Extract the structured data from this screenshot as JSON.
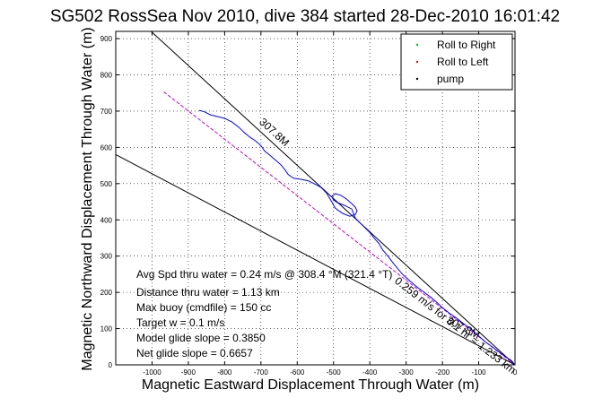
{
  "chart_data": {
    "type": "line",
    "title": "SG502 RossSea Nov 2010, dive 384 started 28-Dec-2010 16:01:42",
    "xlabel": "Magnetic Eastward Displacement Through Water (m)",
    "ylabel": "Magnetic Northward Displacement Through Water (m)",
    "xlim": [
      -1100,
      0
    ],
    "ylim": [
      0,
      920
    ],
    "grid": true,
    "xticks": [
      -1000,
      -900,
      -800,
      -700,
      -600,
      -500,
      -400,
      -300,
      -200,
      -100,
      0
    ],
    "yticks": [
      0,
      100,
      200,
      300,
      400,
      500,
      600,
      700,
      800,
      900
    ],
    "legend": {
      "placement": "top-right",
      "entries": [
        {
          "label": "Roll to Right",
          "color": "#00c000",
          "marker": "."
        },
        {
          "label": "Roll to Left",
          "color": "#ff0000",
          "marker": "."
        },
        {
          "label": "pump",
          "color": "#000000",
          "marker": "."
        }
      ]
    },
    "reference_lines": [
      {
        "label": "307.8M",
        "color": "#000000",
        "x": [
          0,
          -1030
        ],
        "y": [
          0,
          945
        ]
      },
      {
        "label": "0.259 m/s for 0.1 hr = 1.233 km",
        "color": "#cc00cc",
        "x": [
          0,
          -970
        ],
        "y": [
          0,
          755
        ]
      },
      {
        "label": "307.8M",
        "color": "#000000",
        "x": [
          0,
          -1100
        ],
        "y": [
          0,
          580
        ]
      }
    ],
    "series": [
      {
        "color": "#0000ff",
        "x": [
          0,
          -10,
          -30,
          -50,
          -60,
          -80,
          -100,
          -120,
          -140,
          -160,
          -180,
          -200,
          -215,
          -230,
          -250,
          -270,
          -290,
          -310,
          -320,
          -335,
          -350,
          -365,
          -375,
          -390,
          -400,
          -410,
          -420,
          -430,
          -440,
          -445,
          -450,
          -470,
          -490,
          -500,
          -505,
          -495,
          -480,
          -465,
          -450,
          -440,
          -435,
          -440,
          -455,
          -475,
          -495,
          -505,
          -520,
          -535,
          -550,
          -570,
          -590,
          -610,
          -625,
          -635,
          -645,
          -660,
          -675,
          -690,
          -700,
          -715,
          -730,
          -745,
          -760,
          -780,
          -800,
          -820,
          -840,
          -855,
          -870
        ],
        "y": [
          0,
          12,
          25,
          40,
          48,
          62,
          80,
          98,
          112,
          128,
          142,
          158,
          172,
          185,
          200,
          215,
          232,
          250,
          262,
          280,
          300,
          318,
          335,
          352,
          365,
          375,
          385,
          395,
          405,
          418,
          430,
          440,
          448,
          455,
          465,
          472,
          468,
          458,
          445,
          435,
          425,
          415,
          410,
          418,
          432,
          450,
          475,
          490,
          498,
          508,
          512,
          515,
          525,
          540,
          552,
          565,
          578,
          590,
          605,
          618,
          628,
          640,
          655,
          670,
          680,
          685,
          690,
          698,
          702
        ]
      }
    ],
    "annotations": [
      "Avg Spd thru water =  0.24 m/s @ 308.4 °M (321.4 °T)",
      "Distance thru water =  1.13 km",
      "Max buoy (cmdfile) = 150 cc",
      "Target w = 0.1 m/s",
      "Model glide slope = 0.3850",
      "Net glide slope = 0.6657"
    ]
  }
}
